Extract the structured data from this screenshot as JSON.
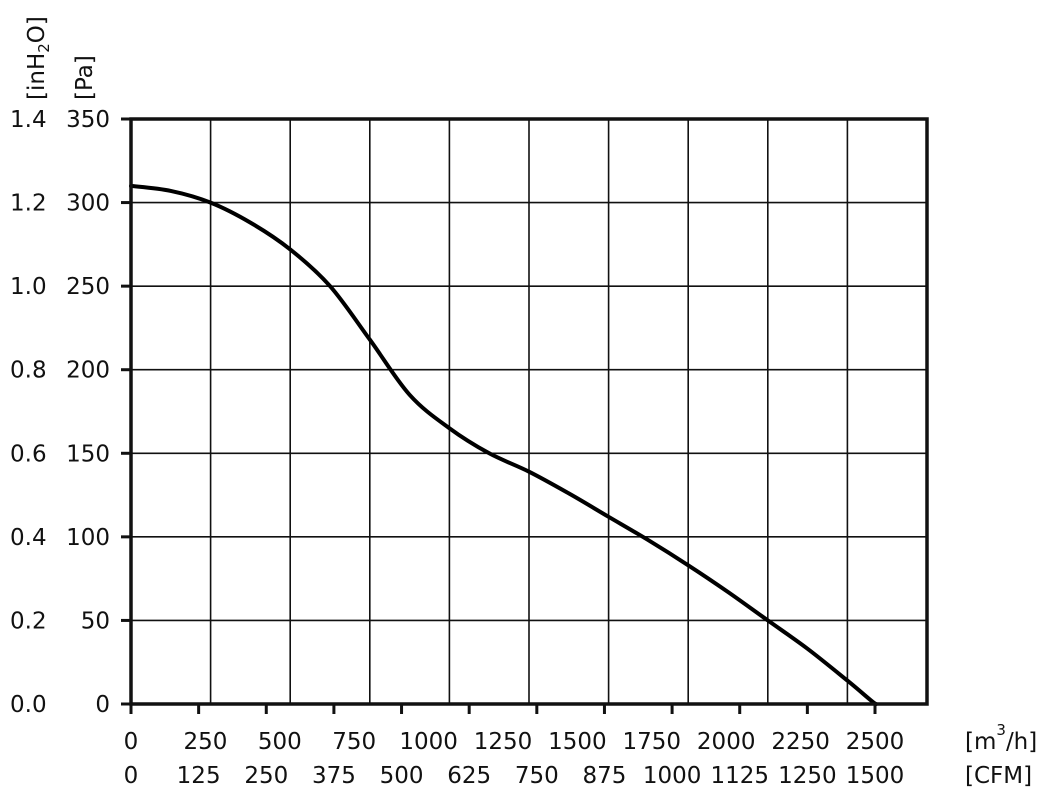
{
  "chart_data": {
    "type": "line",
    "title": "",
    "x_axis": {
      "unit_base": "[m",
      "unit_sup": "3",
      "unit_tail": "/h]",
      "range": [
        0,
        2500
      ],
      "ticks": [
        "0",
        "250",
        "500",
        "750",
        "1000",
        "1250",
        "1500",
        "1750",
        "2000",
        "2250",
        "2500"
      ]
    },
    "x_axis_secondary": {
      "unit": "[CFM]",
      "ticks": [
        "0",
        "125",
        "250",
        "375",
        "500",
        "625",
        "750",
        "875",
        "1000",
        "1125",
        "1250",
        "1500"
      ]
    },
    "y_axis": {
      "unit": "[Pa]",
      "range": [
        0,
        350
      ],
      "ticks": [
        "0",
        "50",
        "100",
        "150",
        "200",
        "250",
        "300",
        "350"
      ]
    },
    "y_axis_secondary": {
      "unit_base": "[inH",
      "unit_sub": "2",
      "unit_tail": "O]",
      "ticks": [
        "0.0",
        "0.2",
        "0.4",
        "0.6",
        "0.8",
        "1.0",
        "1.2",
        "1.4"
      ]
    },
    "grid": true,
    "series": [
      {
        "x": [
          0,
          125,
          250,
          375,
          500,
          625,
          750,
          875,
          1000,
          1125,
          1250,
          1375,
          1500,
          1625,
          1750,
          1875,
          2000,
          2125,
          2250,
          2325,
          2340
        ],
        "y": [
          310,
          307,
          300,
          288,
          272,
          250,
          218,
          185,
          165,
          150,
          139,
          126,
          112,
          98,
          83,
          67,
          50,
          33,
          14,
          2,
          0
        ]
      }
    ]
  }
}
